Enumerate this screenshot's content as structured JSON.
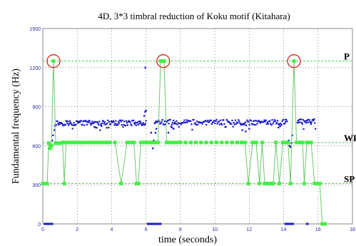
{
  "chart_data": {
    "type": "scatter",
    "title": "4D, 3*3 timbral reduction of Koku motif (Kitahara)",
    "xlabel": "time (seconds)",
    "ylabel": "Fundamental frequency (Hz)",
    "xlim": [
      0,
      18
    ],
    "ylim": [
      0,
      1500
    ],
    "xticks": [
      "0",
      "2",
      "4",
      "6",
      "8",
      "10",
      "12",
      "14",
      "16",
      "18"
    ],
    "yticks": [
      "0",
      "300",
      "600",
      "900",
      "1200",
      "1500"
    ],
    "grid": "dotted",
    "colors": {
      "frame": "#8a8a8a",
      "grid": "#444444",
      "detail_series": "#1a1ac8",
      "reduction_series": "#44ee44",
      "reduction_line": "#6cc96c",
      "highlight": "#dd2222",
      "level_line": "#55cc55",
      "tick_text": "#2a2aa0"
    },
    "level_labels": [
      {
        "text": "P",
        "y": 1250
      },
      {
        "text": "WF",
        "y": 625
      },
      {
        "text": "SP",
        "y": 310
      }
    ],
    "highlights": [
      {
        "x": 0.62,
        "y": 1250
      },
      {
        "x": 7.0,
        "y": 1250
      },
      {
        "x": 14.6,
        "y": 1250
      }
    ],
    "series": [
      {
        "kind": "detail",
        "segments": [
          {
            "x_start": 0.7,
            "x_end": 6.0,
            "y": 775,
            "n": 140,
            "points": [
              [
                0.35,
                580
              ],
              [
                0.42,
                600
              ],
              [
                0.55,
                640
              ],
              [
                0.6,
                680
              ],
              [
                0.68,
                720
              ],
              [
                3.0,
                745
              ],
              [
                3.4,
                755
              ],
              [
                5.9,
                830
              ],
              [
                5.95,
                860
              ],
              [
                6.0,
                870
              ],
              [
                5.96,
                1200
              ]
            ]
          },
          {
            "x_start": 6.5,
            "x_end": 14.2,
            "y": 780,
            "n": 170,
            "points": [
              [
                6.3,
                700
              ],
              [
                6.35,
                620
              ],
              [
                6.4,
                580
              ],
              [
                6.45,
                640
              ],
              [
                6.55,
                700
              ],
              [
                6.6,
                730
              ],
              [
                7.3,
                700
              ],
              [
                7.5,
                740
              ],
              [
                7.6,
                730
              ],
              [
                11.6,
                720
              ],
              [
                11.8,
                710
              ],
              [
                12.0,
                730
              ],
              [
                13.7,
                740
              ],
              [
                13.8,
                750
              ],
              [
                14.1,
                800
              ]
            ]
          },
          {
            "x_start": 14.8,
            "x_end": 15.85,
            "y": 785,
            "n": 30,
            "points": [
              [
                14.3,
                640
              ],
              [
                14.35,
                600
              ],
              [
                14.4,
                590
              ],
              [
                14.45,
                620
              ],
              [
                14.5,
                680
              ]
            ]
          }
        ],
        "baseline": [
          [
            0.05,
            0.6
          ],
          [
            6.05,
            6.9
          ],
          [
            14.05,
            14.6
          ],
          [
            15.3,
            15.45
          ]
        ]
      },
      {
        "kind": "reduction",
        "points": [
          [
            0.0,
            310
          ],
          [
            0.1,
            310
          ],
          [
            0.25,
            310
          ],
          [
            0.35,
            620
          ],
          [
            0.42,
            580
          ],
          [
            0.5,
            600
          ],
          [
            0.62,
            1250
          ],
          [
            0.75,
            620
          ],
          [
            0.85,
            620
          ],
          [
            1.0,
            620
          ],
          [
            1.15,
            625
          ],
          [
            1.25,
            310
          ],
          [
            1.35,
            625
          ],
          [
            1.5,
            625
          ],
          [
            1.7,
            625
          ],
          [
            1.9,
            625
          ],
          [
            2.1,
            625
          ],
          [
            2.3,
            625
          ],
          [
            2.5,
            625
          ],
          [
            2.7,
            625
          ],
          [
            2.9,
            625
          ],
          [
            3.1,
            625
          ],
          [
            3.3,
            625
          ],
          [
            3.5,
            625
          ],
          [
            3.7,
            625
          ],
          [
            3.9,
            625
          ],
          [
            4.2,
            625
          ],
          [
            4.55,
            310
          ],
          [
            4.9,
            625
          ],
          [
            5.1,
            625
          ],
          [
            5.3,
            625
          ],
          [
            5.45,
            310
          ],
          [
            5.55,
            310
          ],
          [
            5.7,
            625
          ],
          [
            5.85,
            625
          ],
          [
            6.0,
            625
          ],
          [
            6.15,
            625
          ],
          [
            6.3,
            625
          ],
          [
            6.5,
            625
          ],
          [
            6.7,
            625
          ],
          [
            6.85,
            1250
          ],
          [
            6.95,
            1250
          ],
          [
            7.05,
            1250
          ],
          [
            7.2,
            625
          ],
          [
            7.4,
            625
          ],
          [
            7.6,
            625
          ],
          [
            7.8,
            625
          ],
          [
            8.0,
            625
          ],
          [
            8.3,
            625
          ],
          [
            8.6,
            625
          ],
          [
            8.9,
            625
          ],
          [
            9.2,
            625
          ],
          [
            9.5,
            625
          ],
          [
            9.8,
            625
          ],
          [
            10.1,
            625
          ],
          [
            10.4,
            625
          ],
          [
            10.7,
            625
          ],
          [
            11.0,
            625
          ],
          [
            11.3,
            625
          ],
          [
            11.55,
            625
          ],
          [
            11.75,
            625
          ],
          [
            11.95,
            310
          ],
          [
            12.2,
            625
          ],
          [
            12.4,
            625
          ],
          [
            12.6,
            310
          ],
          [
            12.75,
            625
          ],
          [
            12.9,
            310
          ],
          [
            13.1,
            310
          ],
          [
            13.25,
            310
          ],
          [
            13.4,
            310
          ],
          [
            13.55,
            625
          ],
          [
            13.75,
            310
          ],
          [
            13.95,
            625
          ],
          [
            14.1,
            625
          ],
          [
            14.25,
            625
          ],
          [
            14.4,
            310
          ],
          [
            14.6,
            1250
          ],
          [
            14.75,
            625
          ],
          [
            14.95,
            625
          ],
          [
            15.1,
            625
          ],
          [
            15.2,
            310
          ],
          [
            15.35,
            625
          ],
          [
            15.45,
            625
          ],
          [
            15.6,
            625
          ],
          [
            15.8,
            310
          ],
          [
            15.95,
            310
          ],
          [
            16.1,
            310
          ],
          [
            16.25,
            0
          ],
          [
            16.4,
            0
          ]
        ]
      }
    ]
  }
}
